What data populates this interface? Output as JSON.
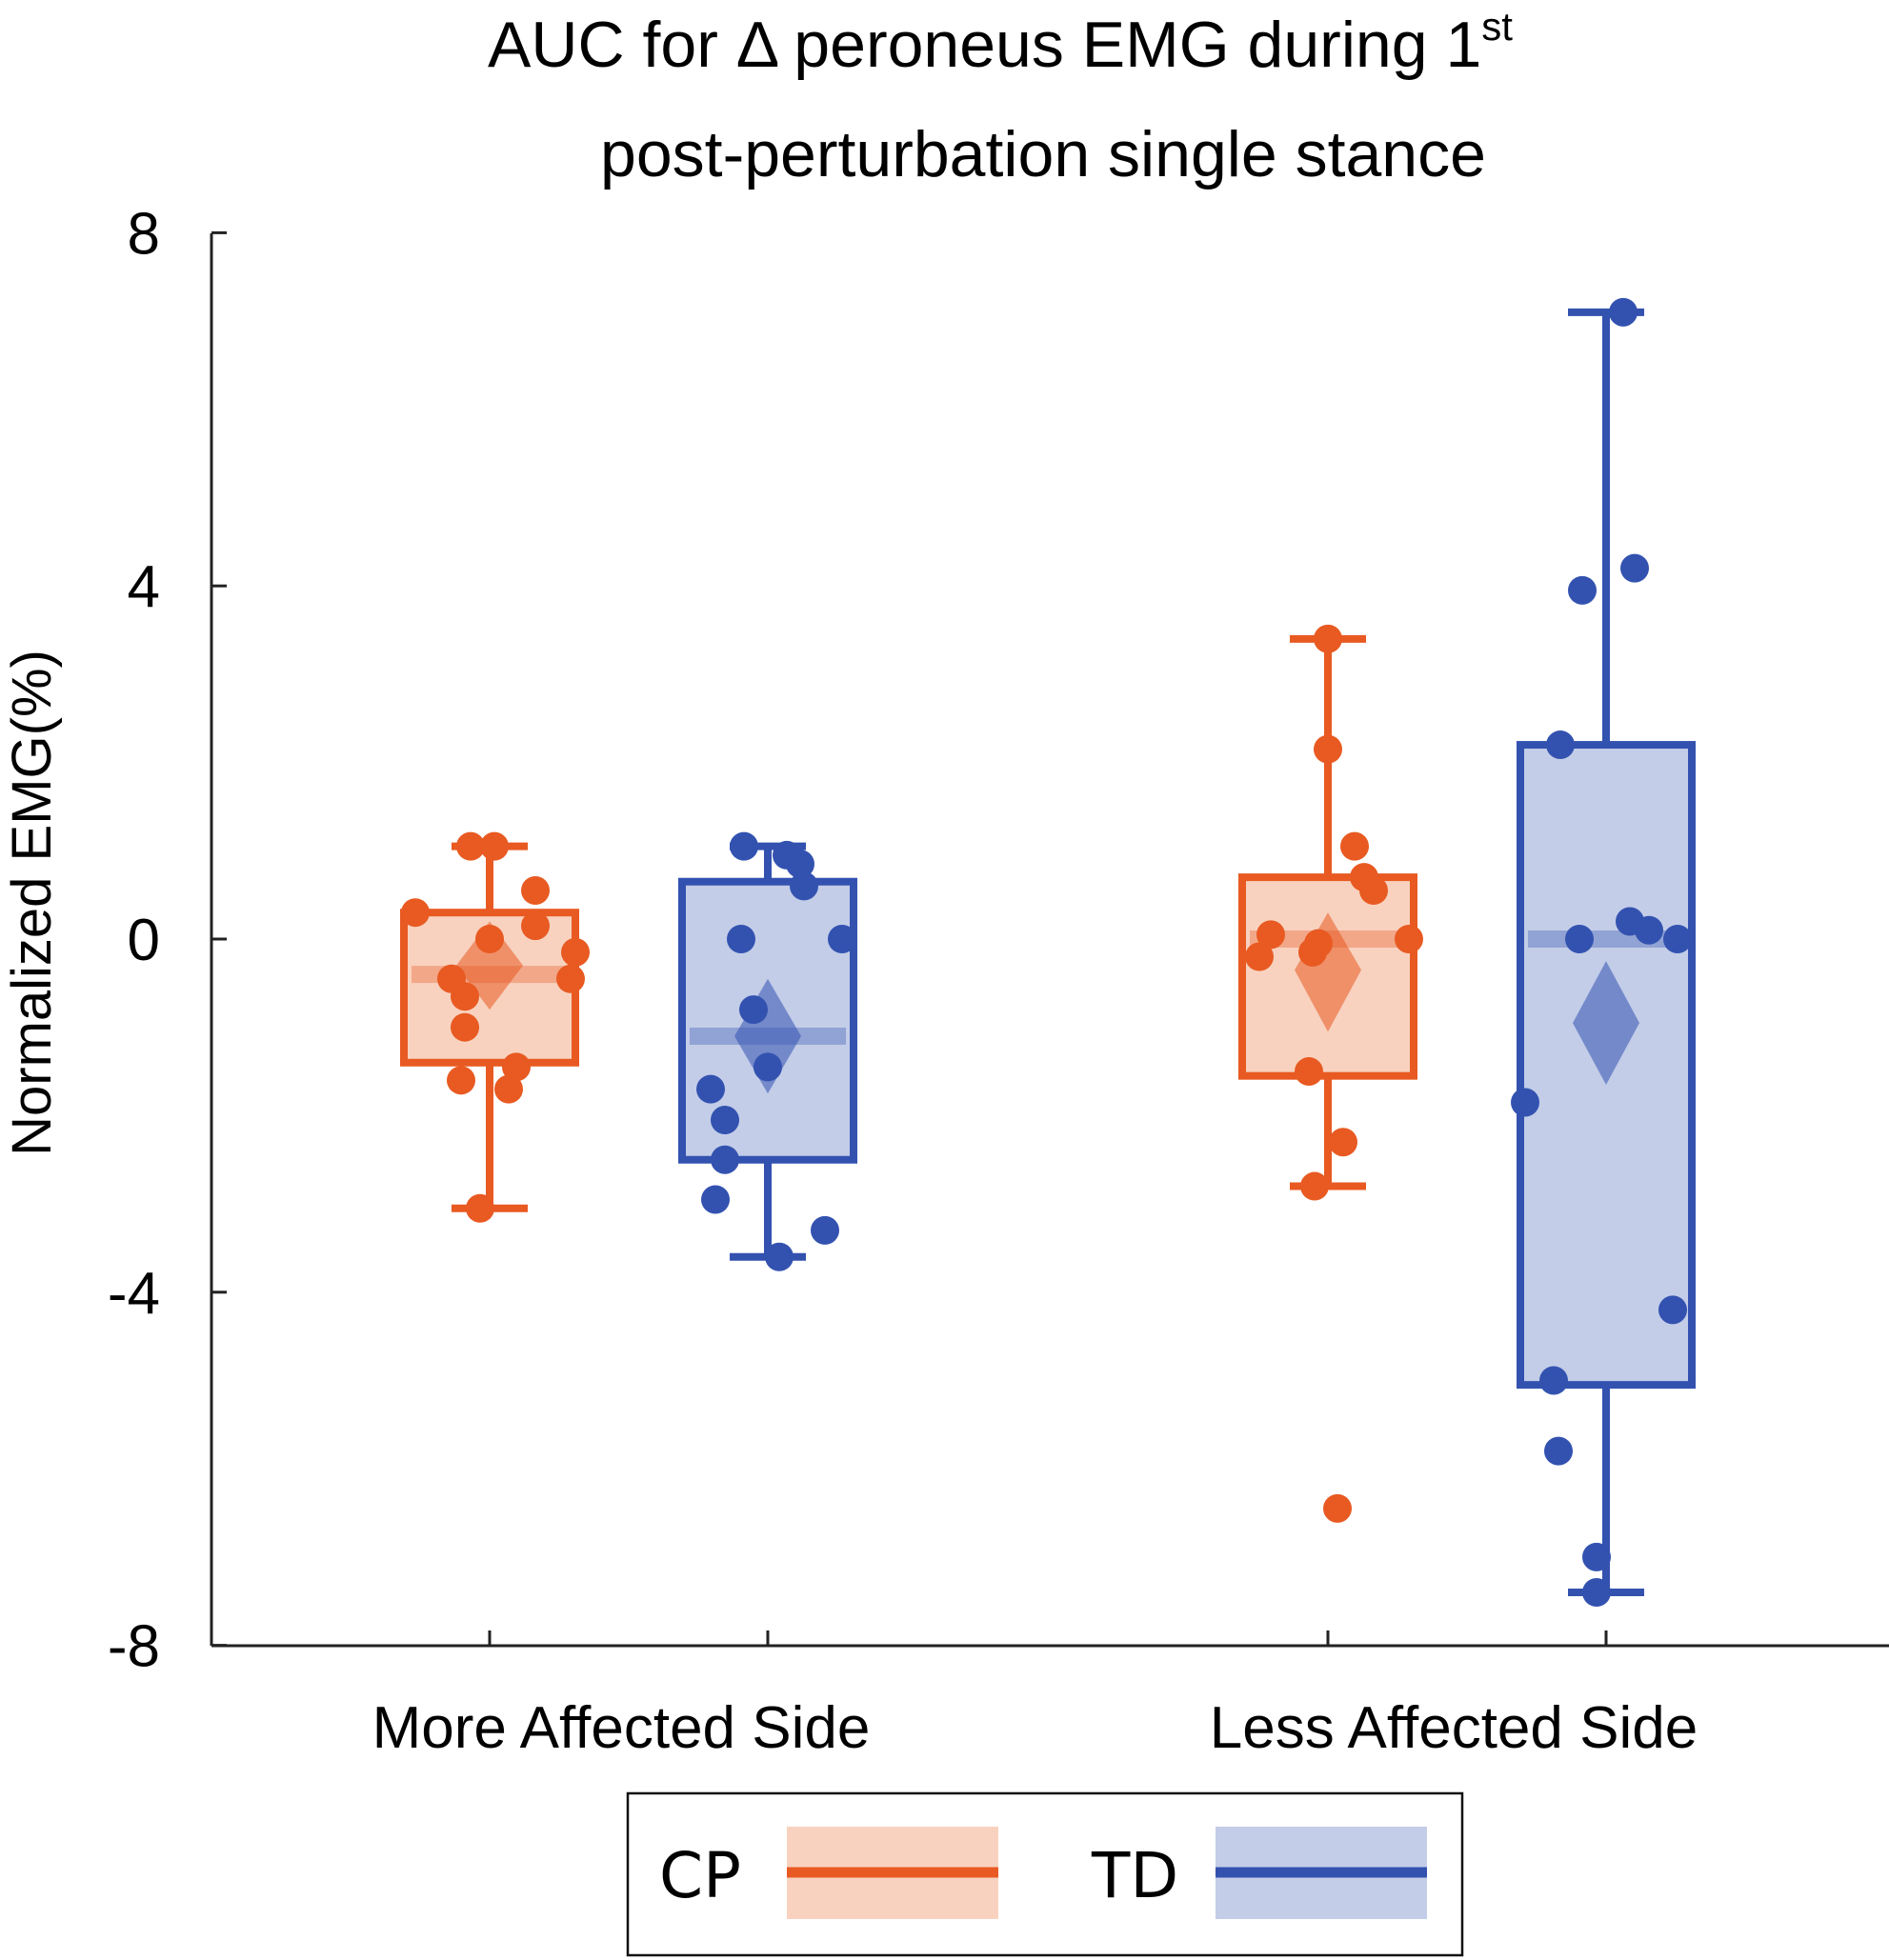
{
  "chart_data": {
    "type": "box",
    "title_line1": "AUC for Δ peroneus EMG during 1",
    "title_sup": "st",
    "title_line2": "post-perturbation single stance",
    "ylabel": "Normalized EMG(%)",
    "ylim": [
      -8,
      8
    ],
    "yticks": [
      {
        "value": 8,
        "label": "8"
      },
      {
        "value": 4,
        "label": "4"
      },
      {
        "value": 0,
        "label": "0"
      },
      {
        "value": -4,
        "label": "-4"
      },
      {
        "value": -8,
        "label": "-8"
      }
    ],
    "categories": [
      "More Affected Side",
      "Less Affected Side"
    ],
    "legend": [
      {
        "label": "CP",
        "color": "#e85a22",
        "fill": "#f8d2bf"
      },
      {
        "label": "TD",
        "color": "#3352b0",
        "fill": "#c3cde8"
      }
    ],
    "groups": [
      {
        "category": "More Affected Side",
        "series": "CP",
        "color": "#e85a22",
        "fill": "#f8d2bf",
        "q1": -1.4,
        "median": -0.4,
        "q3": 0.3,
        "whisker_low": -3.05,
        "whisker_high": 1.05,
        "mean": -0.3,
        "ci_low": -0.8,
        "ci_high": 0.2,
        "points": [
          1.05,
          1.05,
          0.55,
          0.3,
          0.15,
          0.0,
          -0.15,
          -0.45,
          -0.45,
          -0.65,
          -1.0,
          -1.45,
          -1.6,
          -1.7,
          -3.05
        ]
      },
      {
        "category": "More Affected Side",
        "series": "TD",
        "color": "#3352b0",
        "fill": "#c3cde8",
        "q1": -2.5,
        "median": -1.1,
        "q3": 0.65,
        "whisker_low": -3.6,
        "whisker_high": 1.05,
        "mean": -1.1,
        "ci_low": -1.75,
        "ci_high": -0.45,
        "points": [
          1.05,
          0.95,
          0.85,
          0.6,
          0.0,
          0.0,
          -0.8,
          -1.45,
          -1.7,
          -2.05,
          -2.5,
          -2.95,
          -3.3,
          -3.6
        ]
      },
      {
        "category": "Less Affected Side",
        "series": "CP",
        "color": "#e85a22",
        "fill": "#f8d2bf",
        "q1": -1.55,
        "median": 0.0,
        "q3": 0.7,
        "whisker_low": -2.8,
        "whisker_high": 3.4,
        "mean": -0.35,
        "ci_low": -1.05,
        "ci_high": 0.3,
        "points": [
          3.4,
          2.15,
          1.05,
          0.7,
          0.55,
          0.05,
          0.0,
          -0.05,
          -0.15,
          -0.2,
          -1.5,
          -2.3,
          -2.8,
          -6.45
        ],
        "outliers": [
          -6.45
        ]
      },
      {
        "category": "Less Affected Side",
        "series": "TD",
        "color": "#3352b0",
        "fill": "#c3cde8",
        "q1": -5.05,
        "median": 0.0,
        "q3": 2.2,
        "whisker_low": -7.4,
        "whisker_high": 7.1,
        "mean": -0.95,
        "ci_low": -1.65,
        "ci_high": -0.25,
        "points": [
          7.1,
          4.2,
          3.95,
          2.2,
          0.2,
          0.1,
          0.0,
          0.0,
          -1.85,
          -4.2,
          -5.0,
          -5.8,
          -7.0,
          -7.4
        ]
      }
    ]
  }
}
